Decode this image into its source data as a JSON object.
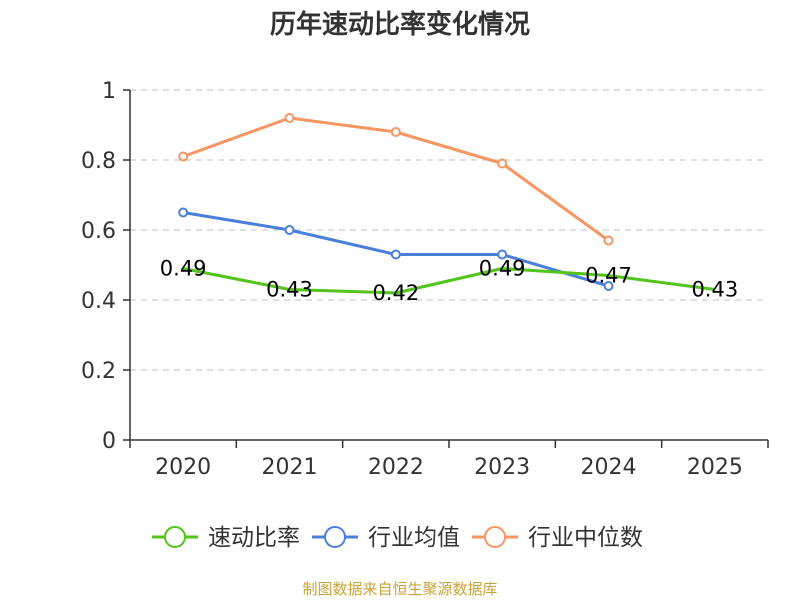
{
  "chart_data": {
    "type": "line",
    "title": "历年速动比率变化情况",
    "categories": [
      "2020",
      "2021",
      "2022",
      "2023",
      "2024",
      "2025"
    ],
    "ylim": [
      0,
      1
    ],
    "yticks": [
      {
        "value": 0,
        "label": "0"
      },
      {
        "value": 0.2,
        "label": "0.2"
      },
      {
        "value": 0.4,
        "label": "0.4"
      },
      {
        "value": 0.6,
        "label": "0.6"
      },
      {
        "value": 0.8,
        "label": "0.8"
      },
      {
        "value": 1,
        "label": "1"
      }
    ],
    "grid": true,
    "legend_position": "bottom",
    "series": [
      {
        "name": "速动比率",
        "color": "#52c41a",
        "values": [
          0.49,
          0.43,
          0.42,
          0.49,
          0.47,
          0.43
        ],
        "labels": [
          "0.49",
          "0.43",
          "0.42",
          "0.49",
          "0.47",
          "0.43"
        ],
        "show_markers": false
      },
      {
        "name": "行业均值",
        "color": "#4a7fdc",
        "values": [
          0.65,
          0.6,
          0.53,
          0.53,
          0.44,
          null
        ],
        "show_markers": true
      },
      {
        "name": "行业中位数",
        "color": "#f79563",
        "values": [
          0.81,
          0.92,
          0.88,
          0.79,
          0.57,
          null
        ],
        "show_markers": true
      }
    ]
  },
  "source": "制图数据来自恒生聚源数据库"
}
